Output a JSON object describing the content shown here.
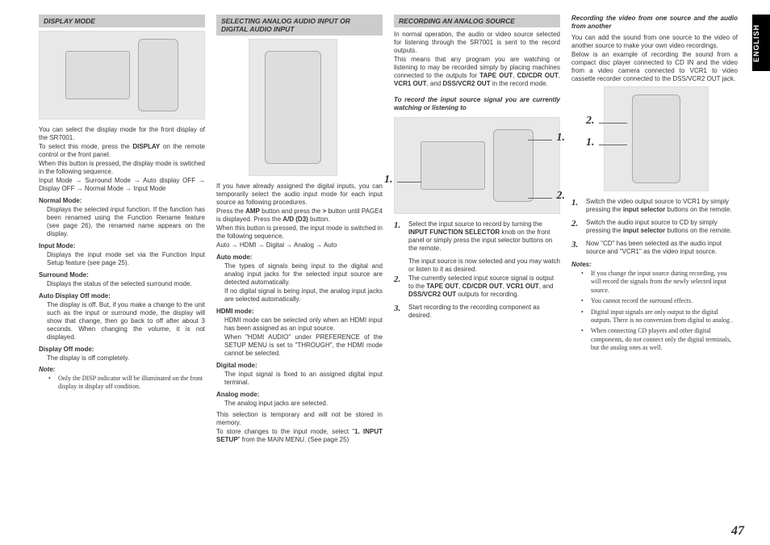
{
  "language_tab": "ENGLISH",
  "page_number": "47",
  "col1": {
    "header": "DISPLAY MODE",
    "intro": [
      "You can select the display mode for the front display of the SR7001.",
      "To select this mode, press the <b>DISPLAY</b> on the remote control or the front panel.",
      "When this button is pressed, the display mode is switched in the following sequence.",
      "Input Mode → Surround Mode → Auto display OFF → Display OFF → Normal Mode → Input Mode"
    ],
    "modes": [
      {
        "label": "Normal Mode:",
        "body": "Displays the selected input function. If the function has been renamed using the Function Rename feature (see page 26), the renamed name appears on the display."
      },
      {
        "label": "Input Mode:",
        "body": "Displays the input mode set via the Function Input Setup feature (see page 25)."
      },
      {
        "label": "Surround Mode:",
        "body": "Displays the status of the selected surround mode."
      },
      {
        "label": "Auto Display Off mode:",
        "body": "The display is off. But, if you make a change to the unit such as the input or surround mode, the display will show that change, then go back to off after about 3 seconds. When changing the volume, it is not displayed."
      },
      {
        "label": "Display Off mode:",
        "body": "The display is off completely."
      }
    ],
    "note_label": "Note:",
    "notes": [
      "Only the DISP indicator will be illuminated on the front display in display off condition."
    ]
  },
  "col2": {
    "header": "SELECTING ANALOG AUDIO INPUT OR DIGITAL AUDIO INPUT",
    "intro": [
      "If you have already assigned the digital inputs, you can temporarily select the audio input mode for each input source as following procedures.",
      "Press the <b>AMP</b> button and press the <b>&gt;</b> button until PAGE4 is displayed. Press the <b>A/D (D3)</b> button.",
      "When this button is pressed, the input mode is switched in the following sequence.",
      "Auto → HDMI → Digital → Analog → Auto"
    ],
    "modes": [
      {
        "label": "Auto mode:",
        "body": "The types of signals being input to the digital and analog input jacks for the selected input source are detected automatically.\nIf no digital signal is being input, the analog input jacks are selected automatically."
      },
      {
        "label": "HDMI mode:",
        "body": "HDMI mode can be selected only when an HDMI input has been assigned as an input source.\nWhen \"HDMI AUDIO\" under PREFERENCE of the SETUP MENU is set to \"THROUGH\", the HDMI mode cannot be selected."
      },
      {
        "label": "Digital mode:",
        "body": "The input signal is fixed to an assigned digital input terminal."
      },
      {
        "label": "Analog mode:",
        "body": "The analog input jacks are selected."
      }
    ],
    "footer": [
      "This selection is temporary and will not be stored in memory.",
      "To store changes to the input mode, select \"<b>1. INPUT SETUP</b>\" from the MAIN MENU. (See page 25)"
    ]
  },
  "col3": {
    "header": "RECORDING AN ANALOG SOURCE",
    "intro": [
      "In normal operation, the audio or video source selected for listening through the SR7001 is sent to the record outputs.",
      "This means that any program you are watching or listening to may be recorded simply by placing machines connected to the outputs for <b>TAPE OUT</b>, <b>CD/CDR OUT</b>, <b>VCR1 OUT</b>, and <b>DSS/VCR2 OUT</b> in the record mode."
    ],
    "subhead": "To record the input source signal you are currently watching or listening to",
    "callouts": [
      "1.",
      "2."
    ],
    "steps": [
      "Select the input source to record by turning the <b>INPUT FUNCTION SELECTOR</b> knob on the front panel or simply press the input selector buttons on the remote.",
      "The currently selected input source signal is output to the <b>TAPE OUT</b>, <b>CD/CDR OUT</b>, <b>VCR1 OUT</b>, and <b>DSS/VCR2 OUT</b> outputs for recording.",
      "Start recording to the recording component as desired."
    ],
    "sub_after_1": "The input source is now selected and you may watch or listen to it as desired."
  },
  "col4": {
    "subhead": "Recording the video from one source and the audio from another",
    "intro": [
      "You can add the sound from one source to the video of another source to make your own video recordings.",
      "Below is an example of recording the sound from a compact disc player connected to CD IN and the video from a video camera connected to VCR1 to video cassette recorder connected to the DSS/VCR2 OUT jack."
    ],
    "callouts": [
      "2.",
      "1."
    ],
    "steps": [
      "Switch the video output source to VCR1 by simply pressing the <b>input selector</b> buttons on the remote.",
      "Switch the audio input source to CD by simply pressing the <b>input selector</b> buttons on the remote.",
      "Now \"CD\" has been selected as the audio input source and \"VCR1\" as the video input source."
    ],
    "notes_label": "Notes:",
    "notes": [
      "If you change the input source during recording, you will record the signals from the newly selected input source.",
      "You cannot record the surround effects.",
      "Digital input signals are only output to the digital outputs. There is no conversion from digital to analog .",
      "When connecting CD players and other digital components, do not connect only the digital terminals, but the analog ones as well."
    ]
  }
}
